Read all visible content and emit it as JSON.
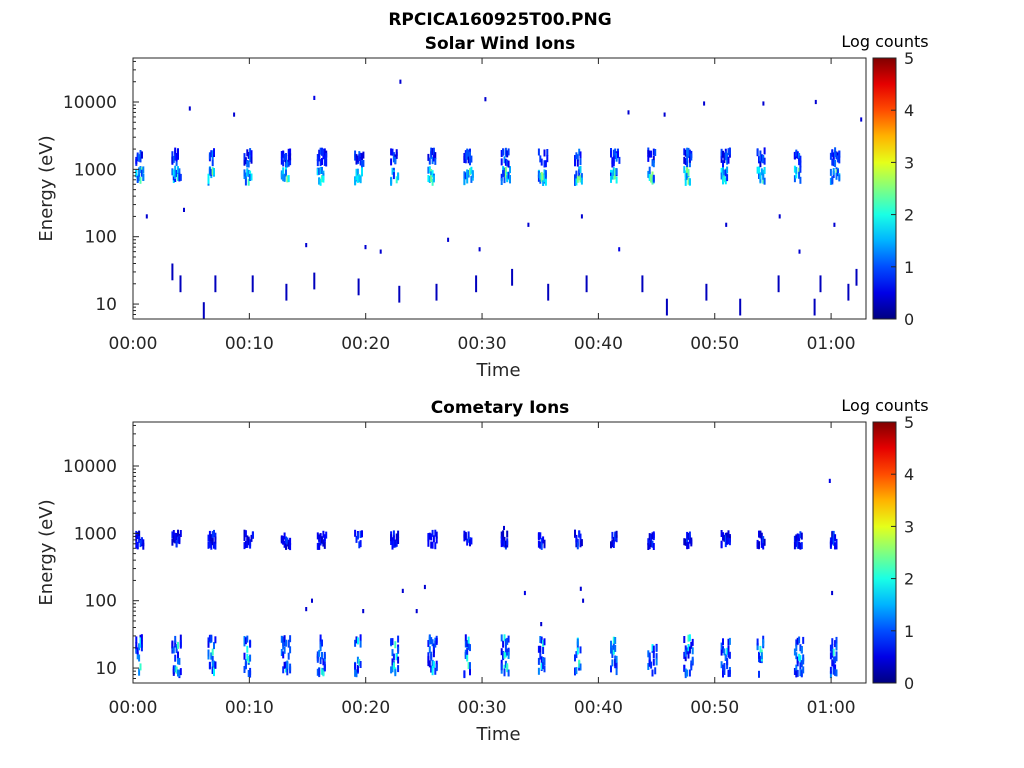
{
  "figure": {
    "title": "RPCICA160925T00.PNG"
  },
  "colorbar": {
    "label": "Log counts",
    "ticks": [
      "0",
      "1",
      "2",
      "3",
      "4",
      "5"
    ],
    "range": [
      0,
      5
    ],
    "colormap": "jet"
  },
  "chart_data": [
    {
      "type": "heatmap",
      "title": "Solar Wind Ions",
      "xlabel": "Time",
      "ylabel": "Energy (eV)",
      "xticks": [
        "00:00",
        "00:10",
        "00:20",
        "00:30",
        "00:40",
        "00:50",
        "01:00"
      ],
      "xtick_minutes": [
        0,
        10,
        20,
        30,
        40,
        50,
        60
      ],
      "xlim_minutes": [
        0,
        63
      ],
      "yticks": [
        "10",
        "100",
        "1000",
        "10000"
      ],
      "ytick_values": [
        10,
        100,
        1000,
        10000
      ],
      "yscale": "log",
      "ylim": [
        6,
        45000
      ],
      "colorbar_label": "Log counts",
      "clim": [
        0,
        5
      ],
      "cycle_start_minutes": [
        0.2,
        3.3,
        6.4,
        9.5,
        12.7,
        15.8,
        19.0,
        22.1,
        25.3,
        28.4,
        31.6,
        34.8,
        37.9,
        41.0,
        44.2,
        47.3,
        50.5,
        53.6,
        56.8,
        59.9
      ],
      "clusters": [
        {
          "energy_ev": 800,
          "typical_log_counts": 1.5,
          "peak_log_counts": 2.6
        },
        {
          "energy_ev": 1500,
          "typical_log_counts": 0.8,
          "peak_log_counts": 1.3
        }
      ],
      "sparse_events": [
        {
          "t": 4.8,
          "e": 8000,
          "v": 0.4
        },
        {
          "t": 8.6,
          "e": 6500,
          "v": 0.4
        },
        {
          "t": 15.5,
          "e": 11500,
          "v": 0.5
        },
        {
          "t": 22.9,
          "e": 20000,
          "v": 0.4
        },
        {
          "t": 30.2,
          "e": 11000,
          "v": 0.4
        },
        {
          "t": 42.5,
          "e": 7000,
          "v": 0.4
        },
        {
          "t": 45.6,
          "e": 6500,
          "v": 0.4
        },
        {
          "t": 49.0,
          "e": 9500,
          "v": 0.4
        },
        {
          "t": 54.1,
          "e": 9500,
          "v": 0.4
        },
        {
          "t": 58.6,
          "e": 10000,
          "v": 0.4
        },
        {
          "t": 62.5,
          "e": 5500,
          "v": 0.4
        },
        {
          "t": 1.1,
          "e": 200,
          "v": 0.4
        },
        {
          "t": 4.3,
          "e": 250,
          "v": 0.4
        },
        {
          "t": 14.8,
          "e": 75,
          "v": 0.4
        },
        {
          "t": 19.9,
          "e": 70,
          "v": 0.4
        },
        {
          "t": 21.2,
          "e": 60,
          "v": 0.4
        },
        {
          "t": 27.0,
          "e": 90,
          "v": 0.4
        },
        {
          "t": 29.7,
          "e": 65,
          "v": 0.4
        },
        {
          "t": 33.9,
          "e": 150,
          "v": 0.4
        },
        {
          "t": 38.5,
          "e": 200,
          "v": 0.4
        },
        {
          "t": 41.7,
          "e": 65,
          "v": 0.5
        },
        {
          "t": 50.9,
          "e": 150,
          "v": 0.4
        },
        {
          "t": 55.5,
          "e": 200,
          "v": 0.4
        },
        {
          "t": 57.2,
          "e": 60,
          "v": 0.4
        },
        {
          "t": 60.2,
          "e": 150,
          "v": 0.4
        }
      ],
      "low_energy_streaks": [
        {
          "t": 3.3,
          "e": 30
        },
        {
          "t": 4.0,
          "e": 20
        },
        {
          "t": 6.0,
          "e": 8
        },
        {
          "t": 7.0,
          "e": 20
        },
        {
          "t": 10.2,
          "e": 20
        },
        {
          "t": 13.1,
          "e": 15
        },
        {
          "t": 15.5,
          "e": 22
        },
        {
          "t": 19.3,
          "e": 18
        },
        {
          "t": 22.8,
          "e": 14
        },
        {
          "t": 26.0,
          "e": 15
        },
        {
          "t": 29.4,
          "e": 20
        },
        {
          "t": 32.5,
          "e": 25
        },
        {
          "t": 35.6,
          "e": 15
        },
        {
          "t": 38.9,
          "e": 20
        },
        {
          "t": 43.7,
          "e": 20
        },
        {
          "t": 45.8,
          "e": 9
        },
        {
          "t": 49.2,
          "e": 15
        },
        {
          "t": 52.1,
          "e": 9
        },
        {
          "t": 55.4,
          "e": 20
        },
        {
          "t": 58.5,
          "e": 9
        },
        {
          "t": 59.0,
          "e": 20
        },
        {
          "t": 61.4,
          "e": 15
        },
        {
          "t": 62.1,
          "e": 25
        }
      ]
    },
    {
      "type": "heatmap",
      "title": "Cometary Ions",
      "xlabel": "Time",
      "ylabel": "Energy (eV)",
      "xticks": [
        "00:00",
        "00:10",
        "00:20",
        "00:30",
        "00:40",
        "00:50",
        "01:00"
      ],
      "xtick_minutes": [
        0,
        10,
        20,
        30,
        40,
        50,
        60
      ],
      "xlim_minutes": [
        0,
        63
      ],
      "yticks": [
        "10",
        "100",
        "1000",
        "10000"
      ],
      "ytick_values": [
        10,
        100,
        1000,
        10000
      ],
      "yscale": "log",
      "ylim": [
        6,
        45000
      ],
      "colorbar_label": "Log counts",
      "clim": [
        0,
        5
      ],
      "cycle_start_minutes": [
        0.2,
        3.3,
        6.4,
        9.5,
        12.7,
        15.8,
        19.0,
        22.1,
        25.3,
        28.4,
        31.6,
        34.8,
        37.9,
        41.0,
        44.2,
        47.3,
        50.5,
        53.6,
        56.8,
        59.9
      ],
      "clusters": [
        {
          "energy_ev": 15,
          "typical_log_counts": 1.0,
          "peak_log_counts": 2.2
        },
        {
          "energy_ev": 800,
          "typical_log_counts": 0.6,
          "peak_log_counts": 1.0
        }
      ],
      "sparse_events": [
        {
          "t": 14.8,
          "e": 75,
          "v": 0.4
        },
        {
          "t": 15.3,
          "e": 100,
          "v": 0.4
        },
        {
          "t": 19.7,
          "e": 70,
          "v": 0.4
        },
        {
          "t": 23.1,
          "e": 140,
          "v": 0.4
        },
        {
          "t": 24.3,
          "e": 70,
          "v": 0.4
        },
        {
          "t": 25.0,
          "e": 160,
          "v": 0.4
        },
        {
          "t": 33.6,
          "e": 130,
          "v": 0.5
        },
        {
          "t": 35.0,
          "e": 45,
          "v": 0.4
        },
        {
          "t": 38.4,
          "e": 150,
          "v": 0.4
        },
        {
          "t": 38.6,
          "e": 100,
          "v": 0.4
        },
        {
          "t": 59.8,
          "e": 6000,
          "v": 0.5
        },
        {
          "t": 60.0,
          "e": 130,
          "v": 0.4
        },
        {
          "t": 31.8,
          "e": 1200,
          "v": 0.4
        }
      ],
      "low_energy_streaks": []
    }
  ]
}
